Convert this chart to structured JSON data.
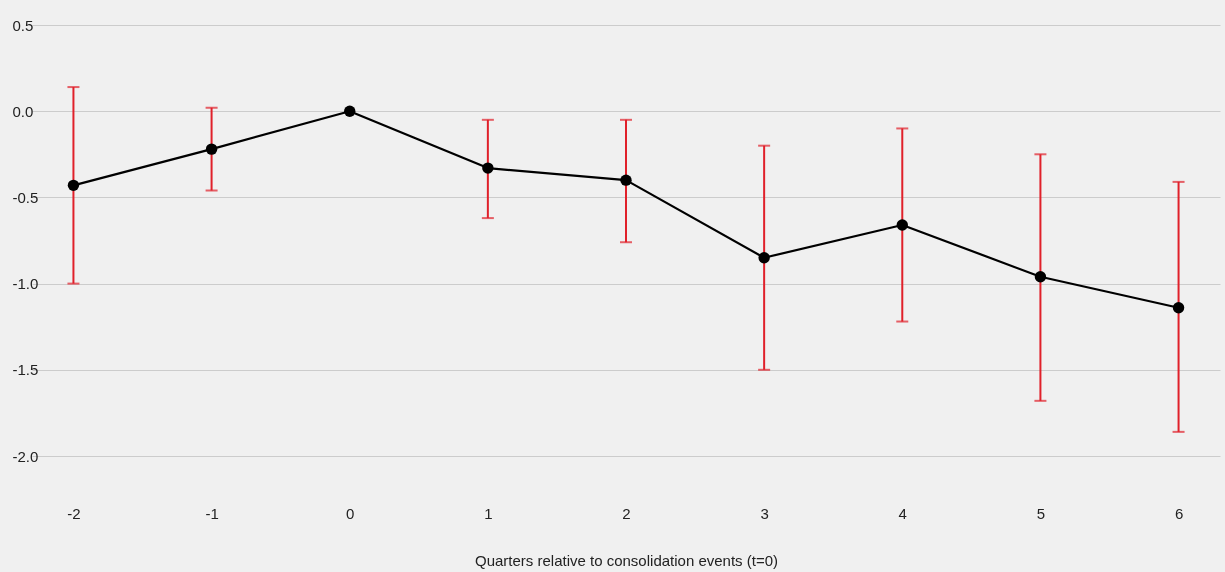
{
  "chart_data": {
    "type": "line",
    "xlabel": "Quarters relative to consolidation events (t=0)",
    "categories": [
      "-2",
      "-1",
      "0",
      "1",
      "2",
      "3",
      "4",
      "5",
      "6"
    ],
    "series": [
      {
        "color": "#000000",
        "values": [
          -0.43,
          -0.22,
          0,
          -0.33,
          -0.4,
          -0.85,
          -0.66,
          -0.96,
          -1.14
        ],
        "errors": [
          [
            -1.0,
            0.14
          ],
          [
            -0.46,
            0.02
          ],
          null,
          [
            -0.62,
            -0.05
          ],
          [
            -0.76,
            -0.05
          ],
          [
            -1.5,
            -0.2
          ],
          [
            -1.22,
            -0.1
          ],
          [
            -1.68,
            -0.25
          ],
          [
            -1.86,
            -0.41
          ]
        ]
      }
    ],
    "ylim": [
      -2,
      0.5
    ],
    "yticks": [
      {
        "value": -2,
        "label": "-2.0"
      },
      {
        "value": -1.5,
        "label": "-1.5"
      },
      {
        "value": -1,
        "label": "-1.0"
      },
      {
        "value": -0.5,
        "label": "-0.5"
      },
      {
        "value": 0,
        "label": "0.0"
      },
      {
        "value": 0.5,
        "label": "0.5"
      }
    ],
    "grid": "y",
    "marker": "circle",
    "line_style": "solid"
  }
}
